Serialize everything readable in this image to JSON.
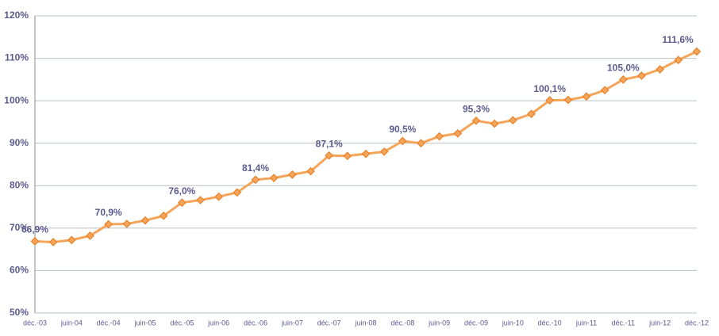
{
  "chart_data": {
    "type": "line",
    "categories": [
      "déc.-03",
      null,
      "juin-04",
      null,
      "déc.-04",
      null,
      "juin-05",
      null,
      "déc.-05",
      null,
      "juin-06",
      null,
      "déc.-06",
      null,
      "juin-07",
      null,
      "déc.-07",
      null,
      "juin-08",
      null,
      "déc.-08",
      null,
      "juin-09",
      null,
      "déc.-09",
      null,
      "juin-10",
      null,
      "déc.-10",
      null,
      "juin-11",
      null,
      "déc.-11",
      null,
      "juin-12",
      null,
      "déc.-12"
    ],
    "values": [
      66.9,
      66.7,
      67.2,
      68.2,
      70.9,
      71.0,
      71.8,
      72.9,
      76.0,
      76.6,
      77.4,
      78.4,
      81.4,
      81.8,
      82.6,
      83.4,
      87.1,
      87.0,
      87.5,
      88.0,
      90.5,
      90.0,
      91.6,
      92.3,
      95.3,
      94.6,
      95.4,
      96.9,
      100.1,
      100.2,
      101.0,
      102.5,
      105.0,
      105.9,
      107.4,
      109.6,
      111.6
    ],
    "value_labels": [
      "66,9%",
      null,
      null,
      null,
      "70,9%",
      null,
      null,
      null,
      "76,0%",
      null,
      null,
      null,
      "81,4%",
      null,
      null,
      null,
      "87,1%",
      null,
      null,
      null,
      "90,5%",
      null,
      null,
      null,
      "95,3%",
      null,
      null,
      null,
      "100,1%",
      null,
      null,
      null,
      "105,0%",
      null,
      null,
      null,
      "111,6%"
    ],
    "color": "#f5a55a",
    "marker_color": "#e8822a",
    "ylim": [
      50,
      120
    ],
    "yticks": [
      {
        "value": 50,
        "label": "50%"
      },
      {
        "value": 60,
        "label": "60%"
      },
      {
        "value": 70,
        "label": "70%"
      },
      {
        "value": 80,
        "label": "80%"
      },
      {
        "value": 90,
        "label": "90%"
      },
      {
        "value": 100,
        "label": "100%"
      },
      {
        "value": 110,
        "label": "110%"
      },
      {
        "value": 120,
        "label": "120%"
      }
    ],
    "grid": true
  }
}
